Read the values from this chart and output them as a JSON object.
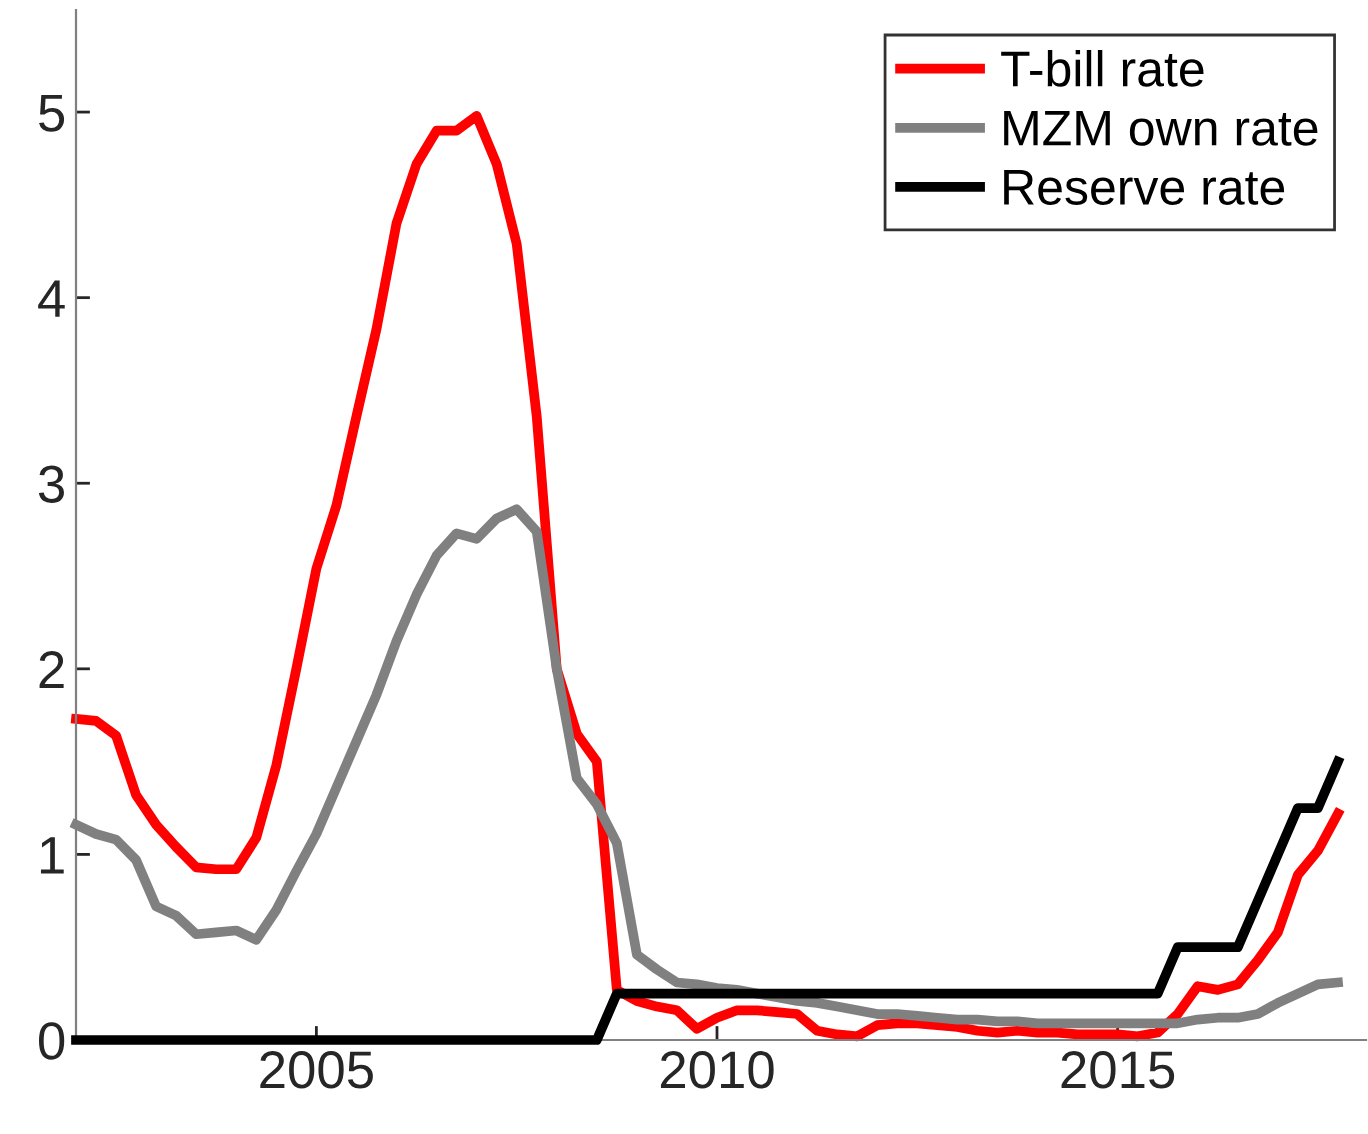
{
  "chart_data": {
    "type": "line",
    "x": [
      2002.0,
      2002.25,
      2002.5,
      2002.75,
      2003.0,
      2003.25,
      2003.5,
      2003.75,
      2004.0,
      2004.25,
      2004.5,
      2004.75,
      2005.0,
      2005.25,
      2005.5,
      2005.75,
      2006.0,
      2006.25,
      2006.5,
      2006.75,
      2007.0,
      2007.25,
      2007.5,
      2007.75,
      2008.0,
      2008.25,
      2008.5,
      2008.75,
      2009.0,
      2009.25,
      2009.5,
      2009.75,
      2010.0,
      2010.25,
      2010.5,
      2010.75,
      2011.0,
      2011.25,
      2011.5,
      2011.75,
      2012.0,
      2012.25,
      2012.5,
      2012.75,
      2013.0,
      2013.25,
      2013.5,
      2013.75,
      2014.0,
      2014.25,
      2014.5,
      2014.75,
      2015.0,
      2015.25,
      2015.5,
      2015.75,
      2016.0,
      2016.25,
      2016.5,
      2016.75,
      2017.0,
      2017.25,
      2017.5,
      2017.75
    ],
    "series": [
      {
        "name": "T-bill rate",
        "color": "#ff0000",
        "values": [
          1.73,
          1.72,
          1.64,
          1.32,
          1.16,
          1.04,
          0.93,
          0.92,
          0.92,
          1.09,
          1.48,
          2.0,
          2.54,
          2.88,
          3.36,
          3.83,
          4.4,
          4.72,
          4.9,
          4.9,
          4.98,
          4.72,
          4.29,
          3.36,
          2.0,
          1.65,
          1.5,
          0.27,
          0.21,
          0.18,
          0.16,
          0.06,
          0.12,
          0.16,
          0.16,
          0.15,
          0.14,
          0.05,
          0.03,
          0.02,
          0.08,
          0.09,
          0.09,
          0.08,
          0.07,
          0.05,
          0.04,
          0.05,
          0.04,
          0.04,
          0.03,
          0.03,
          0.03,
          0.02,
          0.04,
          0.14,
          0.29,
          0.27,
          0.3,
          0.43,
          0.58,
          0.89,
          1.02,
          1.22
        ]
      },
      {
        "name": "MZM own rate",
        "color": "#808080",
        "values": [
          1.16,
          1.11,
          1.08,
          0.97,
          0.72,
          0.67,
          0.57,
          0.58,
          0.59,
          0.54,
          0.7,
          0.91,
          1.11,
          1.36,
          1.61,
          1.86,
          2.15,
          2.4,
          2.61,
          2.73,
          2.7,
          2.81,
          2.86,
          2.74,
          2.0,
          1.41,
          1.27,
          1.06,
          0.46,
          0.38,
          0.31,
          0.3,
          0.28,
          0.27,
          0.25,
          0.23,
          0.21,
          0.2,
          0.18,
          0.16,
          0.14,
          0.14,
          0.13,
          0.12,
          0.11,
          0.11,
          0.1,
          0.1,
          0.09,
          0.09,
          0.09,
          0.09,
          0.09,
          0.09,
          0.09,
          0.09,
          0.11,
          0.12,
          0.12,
          0.14,
          0.2,
          0.25,
          0.3,
          0.31
        ]
      },
      {
        "name": "Reserve rate",
        "color": "#000000",
        "values": [
          0,
          0,
          0,
          0,
          0,
          0,
          0,
          0,
          0,
          0,
          0,
          0,
          0,
          0,
          0,
          0,
          0,
          0,
          0,
          0,
          0,
          0,
          0,
          0,
          0,
          0,
          0,
          0.25,
          0.25,
          0.25,
          0.25,
          0.25,
          0.25,
          0.25,
          0.25,
          0.25,
          0.25,
          0.25,
          0.25,
          0.25,
          0.25,
          0.25,
          0.25,
          0.25,
          0.25,
          0.25,
          0.25,
          0.25,
          0.25,
          0.25,
          0.25,
          0.25,
          0.25,
          0.25,
          0.25,
          0.5,
          0.5,
          0.5,
          0.5,
          0.75,
          1.0,
          1.25,
          1.25,
          1.5
        ]
      }
    ],
    "xlim": [
      2002,
      2018.1
    ],
    "ylim": [
      0,
      5.55
    ],
    "xticks": [
      2005,
      2010,
      2015
    ],
    "yticks": [
      0,
      1,
      2,
      3,
      4,
      5
    ],
    "grid": false,
    "legend": "top right",
    "marker": "none",
    "line_style": "solid"
  }
}
